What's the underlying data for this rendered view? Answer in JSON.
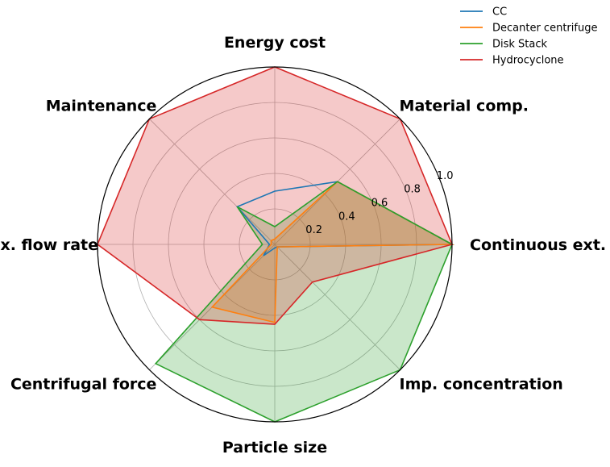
{
  "chart_data": {
    "type": "radar",
    "axes": [
      "Continuous ext.",
      "Material comp.",
      "Energy cost",
      "Maintenance",
      "Max. flow rate",
      "Centrifugal force",
      "Particle size",
      "Imp. concentration"
    ],
    "rlim": [
      0,
      1.0
    ],
    "rticks": [
      0.2,
      0.4,
      0.6,
      0.8,
      1.0
    ],
    "rtick_labels": [
      "0.2",
      "0.4",
      "0.6",
      "0.8",
      "1.0"
    ],
    "grid": true,
    "legend_position": "top-right",
    "series": [
      {
        "name": "CC",
        "color": "#1f77b4",
        "filled": false,
        "values": [
          1.0,
          0.5,
          0.3,
          0.3,
          0.03,
          0.09,
          0.02,
          0.02
        ]
      },
      {
        "name": "Decanter centrifuge",
        "color": "#ff7f0e",
        "filled": true,
        "values": [
          1.0,
          0.5,
          0.03,
          0.03,
          0.02,
          0.5,
          0.44,
          0.02
        ]
      },
      {
        "name": "Disk Stack",
        "color": "#2ca02c",
        "filled": true,
        "values": [
          1.0,
          0.5,
          0.1,
          0.3,
          0.07,
          0.95,
          1.0,
          1.0
        ]
      },
      {
        "name": "Hydrocyclone",
        "color": "#d62728",
        "filled": true,
        "values": [
          1.0,
          1.0,
          1.0,
          1.0,
          1.0,
          0.6,
          0.45,
          0.3
        ]
      }
    ]
  }
}
